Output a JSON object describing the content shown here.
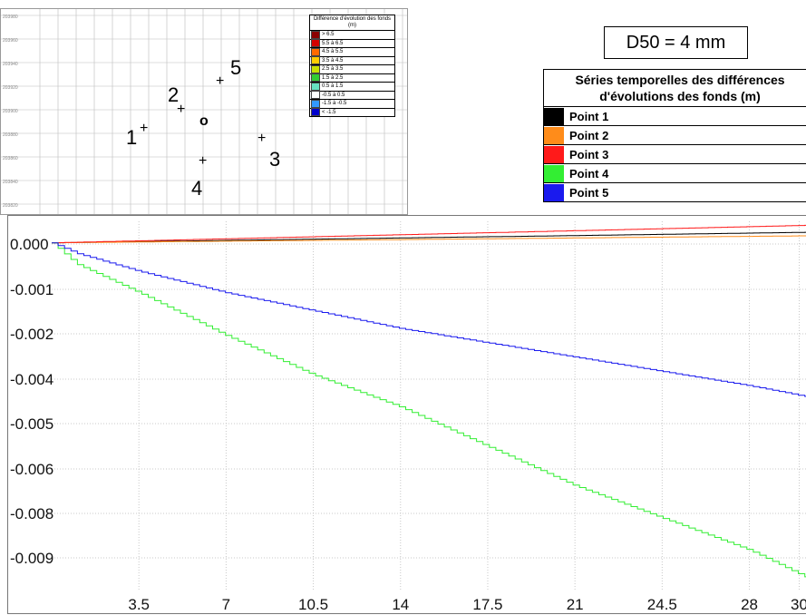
{
  "inset_map": {
    "axis_labels": [
      "203980",
      "203960",
      "203940",
      "203920",
      "203900",
      "203880",
      "203860",
      "203840",
      "203820"
    ],
    "points": [
      {
        "label": "1",
        "cross": "+"
      },
      {
        "label": "2",
        "cross": "+"
      },
      {
        "label": "3",
        "cross": "+"
      },
      {
        "label": "4",
        "cross": "+"
      },
      {
        "label": "5",
        "cross": "+"
      }
    ],
    "station_marker": "o",
    "legend": {
      "title": "Différence d'évolution des fonds (m)",
      "items": [
        {
          "label": "> 6.5",
          "color": "#8b0000"
        },
        {
          "label": "5.5 à 6.5",
          "color": "#d40000"
        },
        {
          "label": "4.5 à 5.5",
          "color": "#ff6a00"
        },
        {
          "label": "3.5 à 4.5",
          "color": "#ffcc00"
        },
        {
          "label": "2.5 à 3.5",
          "color": "#c8e000"
        },
        {
          "label": "1.5 à 2.5",
          "color": "#33cc33"
        },
        {
          "label": "0.5 à 1.5",
          "color": "#66e0c0"
        },
        {
          "label": "-0.5 à 0.5",
          "color": "#ffffff"
        },
        {
          "label": "-1.5 à -0.5",
          "color": "#3399ff"
        },
        {
          "label": "< -1.5",
          "color": "#0000cc"
        }
      ]
    }
  },
  "d50_label": "D50 = 4 mm",
  "series_legend": {
    "title_line1": "Séries temporelles des différences",
    "title_line2": "d'évolutions des fonds (m)",
    "items": [
      {
        "name": "Point 1",
        "color": "#000000"
      },
      {
        "name": "Point 2",
        "color": "#ff8c1a"
      },
      {
        "name": "Point 3",
        "color": "#ff1a1a"
      },
      {
        "name": "Point 4",
        "color": "#33ee33"
      },
      {
        "name": "Point 5",
        "color": "#1a1aee"
      }
    ]
  },
  "chart_data": {
    "type": "line",
    "x_ticks": [
      "3.5",
      "7",
      "10.5",
      "14",
      "17.5",
      "21",
      "24.5",
      "28",
      "30"
    ],
    "y_ticks": [
      "0.000",
      "-0.001",
      "-0.002",
      "-0.004",
      "-0.005",
      "-0.006",
      "-0.008",
      "-0.009"
    ],
    "xlim": [
      0,
      31
    ],
    "ylim": [
      -0.0097,
      0.0006
    ],
    "grid": true,
    "series": [
      {
        "name": "Point 1",
        "color": "#000000",
        "x": [
          0,
          31
        ],
        "y": [
          0,
          0.0003
        ]
      },
      {
        "name": "Point 2",
        "color": "#ff8c1a",
        "x": [
          0,
          31
        ],
        "y": [
          0,
          0.0002
        ]
      },
      {
        "name": "Point 3",
        "color": "#ff1a1a",
        "x": [
          0,
          31
        ],
        "y": [
          0,
          0.0005
        ]
      },
      {
        "name": "Point 4",
        "color": "#33ee33",
        "x": [
          0,
          1,
          3.5,
          7,
          10.5,
          14,
          17.5,
          21,
          24.5,
          28,
          31
        ],
        "y": [
          0,
          -0.0006,
          -0.0014,
          -0.0026,
          -0.0037,
          -0.0046,
          -0.0057,
          -0.0068,
          -0.0077,
          -0.0086,
          -0.0096
        ]
      },
      {
        "name": "Point 5",
        "color": "#1a1aee",
        "x": [
          0,
          1,
          3.5,
          7,
          10.5,
          14,
          17.5,
          21,
          24.5,
          28,
          31
        ],
        "y": [
          0,
          -0.0003,
          -0.0008,
          -0.0014,
          -0.0019,
          -0.0024,
          -0.0028,
          -0.0032,
          -0.0036,
          -0.004,
          -0.0044
        ]
      }
    ]
  }
}
